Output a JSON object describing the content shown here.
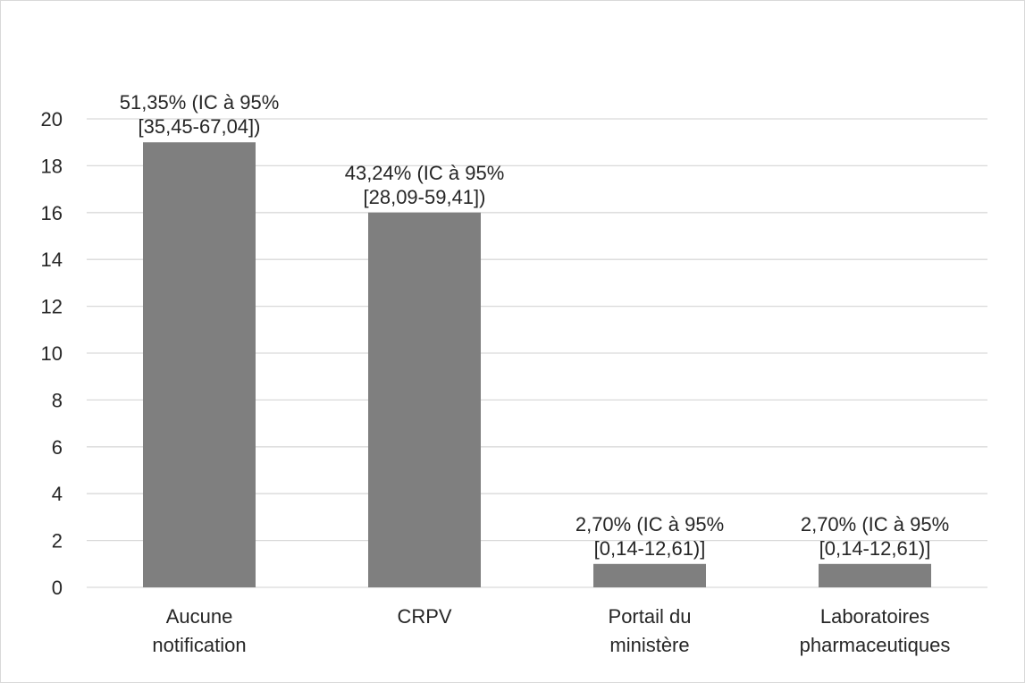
{
  "chart_data": {
    "type": "bar",
    "categories": [
      "Aucune\nnotification",
      "CRPV",
      "Portail du\nministère",
      "Laboratoires\npharmaceutiques"
    ],
    "values": [
      19,
      16,
      1,
      1
    ],
    "annotations": [
      [
        "51,35% (IC à 95%",
        "[35,45-67,04])"
      ],
      [
        "43,24% (IC à 95%",
        "[28,09-59,41])"
      ],
      [
        "2,70% (IC à 95%",
        "[0,14-12,61)]"
      ],
      [
        "2,70% (IC à 95%",
        "[0,14-12,61)]"
      ]
    ],
    "color": "#7f7f7f",
    "ylim": [
      0,
      20
    ],
    "yticks": [
      0,
      2,
      4,
      6,
      8,
      10,
      12,
      14,
      16,
      18,
      20
    ],
    "grid": true
  }
}
